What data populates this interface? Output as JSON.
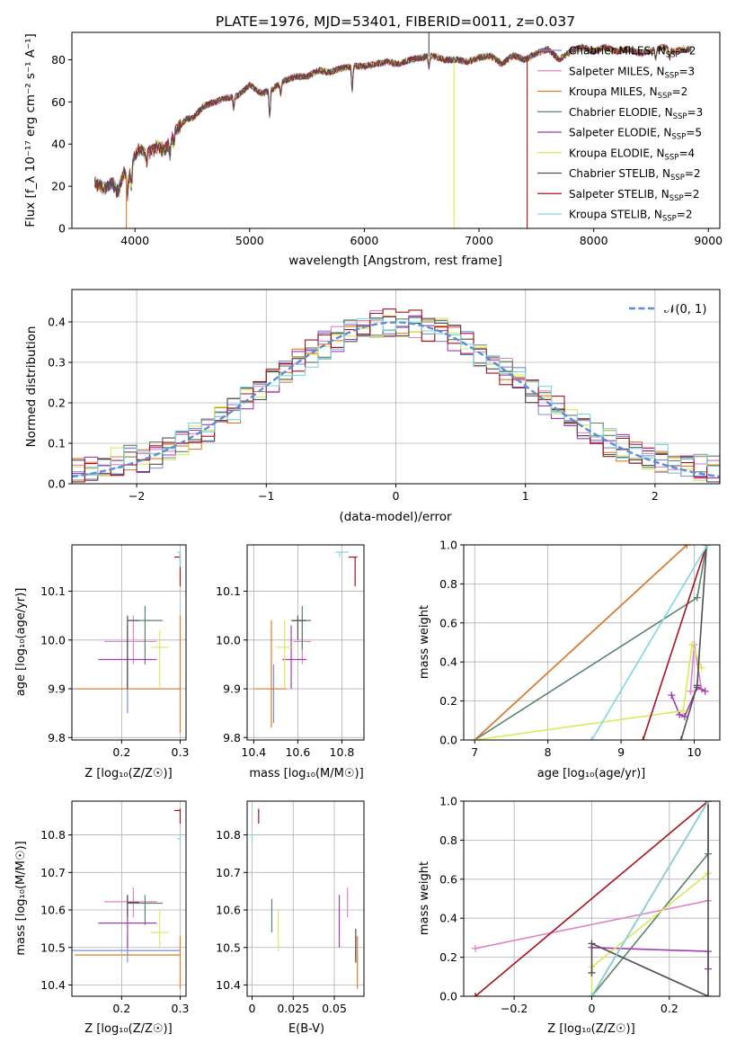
{
  "figure": {
    "title": "PLATE=1976, MJD=53401, FIBERID=0011, z=0.037"
  },
  "colors": {
    "Chabrier MILES": "#7b8cdc",
    "Salpeter MILES": "#e083c8",
    "Kroupa MILES": "#e07b25",
    "Chabrier ELODIE": "#5b8466",
    "Salpeter ELODIE": "#a43ab3",
    "Kroupa ELODIE": "#d6ea5a",
    "Chabrier STELIB": "#505050",
    "Salpeter STELIB": "#a5141e",
    "Kroupa STELIB": "#7fd7df",
    "normal": "#5b8dd9",
    "grid": "#b0b0b0"
  },
  "chart_data": [
    {
      "id": "spectrum",
      "type": "line",
      "title": "PLATE=1976, MJD=53401, FIBERID=0011, z=0.037",
      "xlabel": "wavelength [Angstrom, rest frame]",
      "ylabel": "Flux [f_λ 10⁻¹⁷ erg cm⁻² s⁻¹ A⁻¹]",
      "xlim": [
        3450,
        9100
      ],
      "ylim": [
        0,
        93
      ],
      "xticks": [
        4000,
        5000,
        6000,
        7000,
        8000,
        9000
      ],
      "yticks": [
        0,
        20,
        40,
        60,
        80
      ],
      "grid": false,
      "legend_position": "right",
      "legend": [
        "Chabrier MILES, N_SSP=2",
        "Salpeter MILES, N_SSP=3",
        "Kroupa MILES, N_SSP=2",
        "Chabrier ELODIE, N_SSP=3",
        "Salpeter ELODIE, N_SSP=5",
        "Kroupa ELODIE, N_SSP=4",
        "Chabrier STELIB, N_SSP=2",
        "Salpeter STELIB, N_SSP=2",
        "Kroupa STELIB, N_SSP=2"
      ],
      "continuum_x": [
        3650,
        3700,
        3750,
        3800,
        3850,
        3900,
        3950,
        4000,
        4050,
        4100,
        4150,
        4200,
        4250,
        4300,
        4350,
        4400,
        4450,
        4500,
        4600,
        4700,
        4800,
        4900,
        5000,
        5100,
        5200,
        5300,
        5400,
        5500,
        5600,
        5700,
        5800,
        5900,
        6000,
        6100,
        6200,
        6300,
        6400,
        6500,
        6600,
        6700,
        6800,
        6900,
        7000,
        7100,
        7200,
        7300,
        7400,
        7500,
        7600,
        7700,
        7800,
        7900,
        8000,
        8100,
        8200,
        8300,
        8400,
        8500,
        8600,
        8700,
        8800,
        8850
      ],
      "continuum_y": [
        22,
        20,
        19,
        22,
        17,
        26,
        25,
        35,
        38,
        36,
        37,
        39,
        37,
        40,
        47,
        49,
        52,
        52,
        58,
        60,
        62,
        63,
        68,
        64,
        66,
        70,
        72,
        72,
        75,
        74,
        76,
        77,
        77,
        78,
        79,
        78,
        80,
        81,
        82,
        80,
        80,
        79,
        81,
        82,
        78,
        82,
        80,
        83,
        85,
        80,
        84,
        86,
        84,
        86,
        84,
        85,
        83,
        84,
        86,
        84,
        85,
        85
      ],
      "absorption_lines": [
        {
          "x": 3934,
          "depth": 10
        },
        {
          "x": 3969,
          "depth": 9
        },
        {
          "x": 4102,
          "depth": 5
        },
        {
          "x": 4305,
          "depth": 6
        },
        {
          "x": 4340,
          "depth": 5
        },
        {
          "x": 4861,
          "depth": 6
        },
        {
          "x": 5175,
          "depth": 12
        },
        {
          "x": 5270,
          "depth": 5
        },
        {
          "x": 5894,
          "depth": 12
        },
        {
          "x": 6563,
          "depth": 5
        },
        {
          "x": 8542,
          "depth": 5
        },
        {
          "x": 8662,
          "depth": 4
        }
      ],
      "artifacts": [
        {
          "x": 3925,
          "to": 0
        },
        {
          "x": 6782,
          "to": 0
        },
        {
          "x": 7420,
          "to": 0
        },
        {
          "x": 6563,
          "to": 93
        }
      ]
    },
    {
      "id": "residuals",
      "type": "histogram",
      "xlabel": "(data-model)/error",
      "ylabel": "Normed distribution",
      "xlim": [
        -2.5,
        2.5
      ],
      "ylim": [
        0,
        0.48
      ],
      "xticks": [
        -2,
        -1,
        0,
        1,
        2
      ],
      "yticks": [
        0.0,
        0.1,
        0.2,
        0.3,
        0.4
      ],
      "grid": true,
      "legend": [
        "𝒩(0, 1)"
      ],
      "legend_position": "top-right",
      "bins": {
        "start": -2.5,
        "width": 0.1,
        "count": 50
      },
      "curve": "normal(0,1)"
    },
    {
      "id": "age_vs_Z",
      "type": "scatter",
      "xlabel": "Z [log₁₀(Z/Z☉)]",
      "ylabel": "age  [log₁₀(age/yr)]",
      "xlim": [
        0.115,
        0.31
      ],
      "ylim": [
        9.795,
        10.195
      ],
      "xticks": [
        0.2,
        0.3
      ],
      "yticks": [
        9.8,
        9.9,
        10.0,
        10.1
      ],
      "grid": true,
      "points": [
        {
          "series": "Chabrier MILES",
          "x": 0.21,
          "y": 9.9,
          "xlo": 0.115,
          "xhi": 0.3,
          "ylo": 9.85,
          "yhi": 9.95
        },
        {
          "series": "Salpeter MILES",
          "x": 0.22,
          "y": 9.997,
          "xlo": 0.17,
          "xhi": 0.26,
          "ylo": 9.95,
          "yhi": 10.05
        },
        {
          "series": "Kroupa MILES",
          "x": 0.3,
          "y": 9.9,
          "xlo": 0.12,
          "xhi": 0.3,
          "ylo": 9.81,
          "yhi": 10.05
        },
        {
          "series": "Chabrier ELODIE",
          "x": 0.24,
          "y": 10.04,
          "xlo": 0.21,
          "xhi": 0.27,
          "ylo": 9.95,
          "yhi": 10.07
        },
        {
          "series": "Salpeter ELODIE",
          "x": 0.21,
          "y": 9.96,
          "xlo": 0.16,
          "xhi": 0.26,
          "ylo": 9.9,
          "yhi": 10.03
        },
        {
          "series": "Kroupa ELODIE",
          "x": 0.265,
          "y": 9.985,
          "xlo": 0.25,
          "xhi": 0.28,
          "ylo": 9.9,
          "yhi": 10.02
        },
        {
          "series": "Chabrier STELIB",
          "x": 0.21,
          "y": 10.04,
          "xlo": 0.21,
          "xhi": 0.23,
          "ylo": 9.9,
          "yhi": 10.05
        },
        {
          "series": "Salpeter STELIB",
          "x": 0.3,
          "y": 10.17,
          "xlo": 0.29,
          "xhi": 0.3,
          "ylo": 10.11,
          "yhi": 10.18
        },
        {
          "series": "Kroupa STELIB",
          "x": 0.3,
          "y": 10.18,
          "xlo": 0.295,
          "xhi": 0.3,
          "ylo": 10.15,
          "yhi": 10.18
        }
      ]
    },
    {
      "id": "age_vs_mass",
      "type": "scatter",
      "xlabel": "mass [log₁₀(M/M☉)]",
      "xlim": [
        10.37,
        10.9
      ],
      "ylim": [
        9.795,
        10.195
      ],
      "xticks": [
        10.4,
        10.6,
        10.8
      ],
      "yticks": [
        9.8,
        9.9,
        10.0,
        10.1
      ],
      "grid": true,
      "points": [
        {
          "series": "Chabrier MILES",
          "x": 10.49,
          "y": 9.9,
          "xlo": 10.45,
          "xhi": 10.55,
          "ylo": 9.83,
          "yhi": 9.95
        },
        {
          "series": "Salpeter MILES",
          "x": 10.62,
          "y": 9.997,
          "xlo": 10.58,
          "xhi": 10.66,
          "ylo": 9.95,
          "yhi": 10.04
        },
        {
          "series": "Kroupa MILES",
          "x": 10.48,
          "y": 9.9,
          "xlo": 10.4,
          "xhi": 10.55,
          "ylo": 9.82,
          "yhi": 10.04
        },
        {
          "series": "Chabrier ELODIE",
          "x": 10.62,
          "y": 10.04,
          "xlo": 10.58,
          "xhi": 10.66,
          "ylo": 9.98,
          "yhi": 10.07
        },
        {
          "series": "Salpeter ELODIE",
          "x": 10.57,
          "y": 9.96,
          "xlo": 10.53,
          "xhi": 10.64,
          "ylo": 9.9,
          "yhi": 10.03
        },
        {
          "series": "Kroupa ELODIE",
          "x": 10.54,
          "y": 9.985,
          "xlo": 10.5,
          "xhi": 10.58,
          "ylo": 9.9,
          "yhi": 10.04
        },
        {
          "series": "Chabrier STELIB",
          "x": 10.6,
          "y": 10.04,
          "xlo": 10.57,
          "xhi": 10.64,
          "ylo": 10.0,
          "yhi": 10.05
        },
        {
          "series": "Salpeter STELIB",
          "x": 10.86,
          "y": 10.17,
          "xlo": 10.83,
          "xhi": 10.87,
          "ylo": 10.11,
          "yhi": 10.17
        },
        {
          "series": "Kroupa STELIB",
          "x": 10.79,
          "y": 10.18,
          "xlo": 10.77,
          "xhi": 10.83,
          "ylo": 10.17,
          "yhi": 10.18
        }
      ]
    },
    {
      "id": "weight_vs_age",
      "type": "line",
      "xlabel": "age  [log₁₀(age/yr)]",
      "ylabel": "mass weight",
      "xlim": [
        6.85,
        10.35
      ],
      "ylim": [
        0,
        1
      ],
      "xticks": [
        7,
        8,
        9,
        10
      ],
      "yticks": [
        0.0,
        0.2,
        0.4,
        0.6,
        0.8,
        1.0
      ],
      "grid": true,
      "series": [
        {
          "name": "Chabrier MILES",
          "x": [
            7.0,
            9.9
          ],
          "y": [
            0.0,
            1.0
          ]
        },
        {
          "name": "Salpeter MILES",
          "x": [
            9.95,
            10.0,
            10.1
          ],
          "y": [
            0.25,
            0.49,
            0.26
          ]
        },
        {
          "name": "Kroupa MILES",
          "x": [
            7.0,
            9.9
          ],
          "y": [
            0.0,
            1.0
          ]
        },
        {
          "name": "Chabrier ELODIE",
          "x": [
            7.0,
            10.04,
            10.17
          ],
          "y": [
            0.0,
            0.73,
            1.0
          ]
        },
        {
          "name": "Salpeter ELODIE",
          "x": [
            9.69,
            9.8,
            9.87,
            10.04,
            10.15
          ],
          "y": [
            0.23,
            0.13,
            0.12,
            0.27,
            0.25
          ]
        },
        {
          "name": "Kroupa ELODIE",
          "x": [
            7.0,
            9.85,
            9.97,
            10.1
          ],
          "y": [
            0.0,
            0.15,
            0.49,
            0.37
          ]
        },
        {
          "name": "Chabrier STELIB",
          "x": [
            9.82,
            10.04,
            10.17
          ],
          "y": [
            0.0,
            0.28,
            1.0
          ]
        },
        {
          "name": "Salpeter STELIB",
          "x": [
            9.3,
            10.17
          ],
          "y": [
            0.0,
            1.0
          ]
        },
        {
          "name": "Kroupa STELIB",
          "x": [
            8.6,
            10.18
          ],
          "y": [
            0.0,
            1.0
          ]
        }
      ]
    },
    {
      "id": "mass_vs_Z",
      "type": "scatter",
      "xlabel": "Z [log₁₀(Z/Z☉)]",
      "ylabel": "mass [log₁₀(M/M☉)]",
      "xlim": [
        0.115,
        0.31
      ],
      "ylim": [
        10.37,
        10.89
      ],
      "xticks": [
        0.2,
        0.3
      ],
      "yticks": [
        10.4,
        10.5,
        10.6,
        10.7,
        10.8
      ],
      "grid": true,
      "points": [
        {
          "series": "Chabrier MILES",
          "x": 0.21,
          "y": 10.492,
          "xlo": 0.115,
          "xhi": 0.3,
          "ylo": 10.46,
          "yhi": 10.53
        },
        {
          "series": "Salpeter MILES",
          "x": 0.22,
          "y": 10.622,
          "xlo": 0.17,
          "xhi": 0.26,
          "ylo": 10.58,
          "yhi": 10.66
        },
        {
          "series": "Kroupa MILES",
          "x": 0.3,
          "y": 10.48,
          "xlo": 0.12,
          "xhi": 0.3,
          "ylo": 10.39,
          "yhi": 10.53
        },
        {
          "series": "Chabrier ELODIE",
          "x": 0.24,
          "y": 10.618,
          "xlo": 0.21,
          "xhi": 0.27,
          "ylo": 10.56,
          "yhi": 10.64
        },
        {
          "series": "Salpeter ELODIE",
          "x": 0.21,
          "y": 10.565,
          "xlo": 0.16,
          "xhi": 0.26,
          "ylo": 10.5,
          "yhi": 10.64
        },
        {
          "series": "Kroupa ELODIE",
          "x": 0.265,
          "y": 10.54,
          "xlo": 0.25,
          "xhi": 0.28,
          "ylo": 10.5,
          "yhi": 10.6
        },
        {
          "series": "Chabrier STELIB",
          "x": 0.21,
          "y": 10.62,
          "xlo": 0.21,
          "xhi": 0.23,
          "ylo": 10.58,
          "yhi": 10.64
        },
        {
          "series": "Salpeter STELIB",
          "x": 0.3,
          "y": 10.865,
          "xlo": 0.29,
          "xhi": 0.3,
          "ylo": 10.83,
          "yhi": 10.87
        },
        {
          "series": "Kroupa STELIB",
          "x": 0.3,
          "y": 10.79,
          "xlo": 0.295,
          "xhi": 0.3,
          "ylo": 10.78,
          "yhi": 10.8
        }
      ]
    },
    {
      "id": "mass_vs_ebv",
      "type": "scatter",
      "xlabel": "E(B-V)",
      "xlim": [
        -0.003,
        0.068
      ],
      "ylim": [
        10.37,
        10.89
      ],
      "xticks": [
        0.0,
        0.025,
        0.05
      ],
      "yticks": [
        10.4,
        10.5,
        10.6,
        10.7,
        10.8
      ],
      "grid": true,
      "points": [
        {
          "series": "Chabrier MILES",
          "x": 0.063,
          "y": 10.49,
          "ylo": 10.46,
          "yhi": 10.53
        },
        {
          "series": "Salpeter MILES",
          "x": 0.058,
          "y": 10.62,
          "ylo": 10.58,
          "yhi": 10.66
        },
        {
          "series": "Kroupa MILES",
          "x": 0.064,
          "y": 10.47,
          "ylo": 10.39,
          "yhi": 10.53
        },
        {
          "series": "Chabrier ELODIE",
          "x": 0.012,
          "y": 10.58,
          "ylo": 10.54,
          "yhi": 10.63
        },
        {
          "series": "Salpeter ELODIE",
          "x": 0.053,
          "y": 10.57,
          "ylo": 10.5,
          "yhi": 10.64
        },
        {
          "series": "Kroupa ELODIE",
          "x": 0.016,
          "y": 10.545,
          "ylo": 10.49,
          "yhi": 10.6
        },
        {
          "series": "Chabrier STELIB",
          "x": 0.063,
          "y": 10.5,
          "ylo": 10.46,
          "yhi": 10.55
        },
        {
          "series": "Salpeter STELIB",
          "x": 0.004,
          "y": 10.85,
          "ylo": 10.83,
          "yhi": 10.87
        },
        {
          "series": "Kroupa STELIB",
          "x": 0.0,
          "y": 10.79,
          "ylo": 10.78,
          "yhi": 10.8
        }
      ]
    },
    {
      "id": "weight_vs_Z",
      "type": "line",
      "xlabel": "Z [log₁₀(Z/Z☉)]",
      "ylabel": "mass weight",
      "xlim": [
        -0.33,
        0.33
      ],
      "ylim": [
        0,
        1
      ],
      "xticks": [
        -0.2,
        0.0,
        0.2
      ],
      "yticks": [
        0.0,
        0.2,
        0.4,
        0.6,
        0.8,
        1.0
      ],
      "grid": true,
      "series": [
        {
          "name": "Chabrier MILES",
          "x": [
            0.0,
            0.3
          ],
          "y": [
            0.0,
            1.0
          ]
        },
        {
          "name": "Salpeter MILES",
          "x": [
            -0.3,
            0.3
          ],
          "y": [
            0.245,
            0.49
          ]
        },
        {
          "name": "Kroupa MILES",
          "x": [
            0.0,
            0.3
          ],
          "y": [
            0.0,
            1.0
          ]
        },
        {
          "name": "Chabrier ELODIE",
          "x": [
            0.0,
            0.3,
            0.3
          ],
          "y": [
            0.0,
            0.73,
            1.0
          ]
        },
        {
          "name": "Salpeter ELODIE",
          "x": [
            0.0,
            0.3,
            0.3
          ],
          "y": [
            0.25,
            0.23,
            0.14
          ]
        },
        {
          "name": "Kroupa ELODIE",
          "x": [
            0.0,
            0.0,
            0.3
          ],
          "y": [
            0.0,
            0.15,
            0.63
          ]
        },
        {
          "name": "Chabrier STELIB",
          "x": [
            0.0,
            0.0,
            0.3,
            0.3
          ],
          "y": [
            0.12,
            0.27,
            0.0,
            1.0
          ]
        },
        {
          "name": "Salpeter STELIB",
          "x": [
            -0.3,
            0.3
          ],
          "y": [
            0.0,
            1.0
          ]
        },
        {
          "name": "Kroupa STELIB",
          "x": [
            0.0,
            0.3
          ],
          "y": [
            0.0,
            1.0
          ]
        }
      ]
    }
  ]
}
